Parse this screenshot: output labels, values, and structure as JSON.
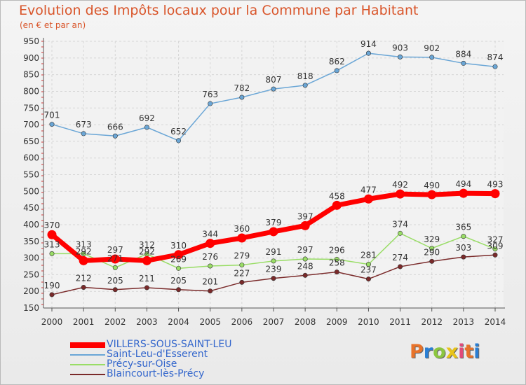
{
  "header": {
    "title": "Evolution des Impôts locaux pour la Commune par Habitant",
    "subtitle": "(en € et par an)"
  },
  "logo": {
    "text": "Proxiti",
    "colors": [
      "#e8732a",
      "#2a7fd4",
      "#8cc63f",
      "#e8c31a",
      "#e04a7a"
    ]
  },
  "chart_data": {
    "type": "line",
    "title": "Evolution des Impôts locaux pour la Commune par Habitant",
    "subtitle": "(en € et par an)",
    "x": [
      "2000",
      "2001",
      "2002",
      "2003",
      "2004",
      "2005",
      "2006",
      "2007",
      "2008",
      "2009",
      "2010",
      "2011",
      "2012",
      "2013",
      "2014"
    ],
    "ylim": [
      150,
      950
    ],
    "yticks": [
      150,
      200,
      250,
      300,
      350,
      400,
      450,
      500,
      550,
      600,
      650,
      700,
      750,
      800,
      850,
      900,
      950
    ],
    "grid": true,
    "legend": "bottom-left",
    "series": [
      {
        "name": "VILLERS-SOUS-SAINT-LEU",
        "color": "#ff0000",
        "values": [
          370,
          292,
          297,
          292,
          310,
          344,
          360,
          379,
          397,
          458,
          477,
          492,
          490,
          494,
          493
        ]
      },
      {
        "name": "Saint-Leu-d'Esserent",
        "color": "#6aa6d6",
        "values": [
          701,
          673,
          666,
          692,
          652,
          763,
          782,
          807,
          818,
          862,
          914,
          903,
          902,
          884,
          874
        ]
      },
      {
        "name": "Précy-sur-Oise",
        "color": "#99dd66",
        "values": [
          313,
          313,
          271,
          312,
          269,
          276,
          279,
          291,
          297,
          296,
          281,
          374,
          329,
          365,
          327
        ]
      },
      {
        "name": "Blaincourt-lès-Précy",
        "color": "#7a2a2a",
        "values": [
          190,
          212,
          205,
          211,
          205,
          201,
          227,
          239,
          248,
          258,
          237,
          274,
          290,
          303,
          309
        ]
      }
    ],
    "data_labels": {
      "VILLERS-SOUS-SAINT-LEU": [
        "370",
        "292",
        "297",
        "292",
        "310",
        "344",
        "360",
        "379",
        "397",
        "458",
        "477",
        "492",
        "490",
        "494",
        "493"
      ],
      "Saint-Leu-d'Esserent": [
        "701",
        "673",
        "666",
        "692",
        "652",
        "763",
        "782",
        "807",
        "818",
        "862",
        "914",
        "903",
        "902",
        "884",
        "874"
      ],
      "Précy-sur-Oise": [
        "313",
        "313",
        "271",
        "312",
        "269",
        "276",
        "279",
        "291",
        "297",
        "296",
        "281",
        "374",
        "329",
        "365",
        "327"
      ],
      "Blaincourt-lès-Précy": [
        "190",
        "212",
        "205",
        "211",
        "205",
        "201",
        "227",
        "239",
        "248",
        "258",
        "237",
        "274",
        "290",
        "303",
        "309"
      ]
    }
  }
}
